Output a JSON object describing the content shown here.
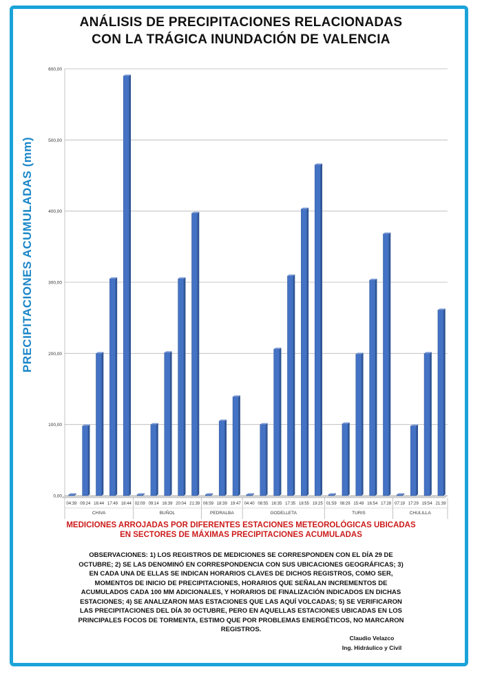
{
  "chart_data": {
    "type": "bar",
    "title": [
      "ANÁLISIS DE PRECIPITACIONES RELACIONADAS",
      "CON LA TRÁGICA INUNDACIÓN DE VALENCIA"
    ],
    "ylabel": "PRECIPITACIONES ACUMULADAS (mm)",
    "ylim": [
      0,
      600
    ],
    "yticks": [
      "0,00",
      "100,00",
      "200,00",
      "300,00",
      "400,00",
      "500,00",
      "600,00"
    ],
    "grid": true,
    "bar_color": "#4472c4",
    "groups": [
      {
        "name": "CHIVA",
        "times": [
          "04:39",
          "09:24",
          "16:44",
          "17:49",
          "18:44"
        ],
        "values": [
          0,
          98,
          200,
          305,
          590
        ]
      },
      {
        "name": "BUÑOL",
        "times": [
          "02:09",
          "09:14",
          "16:39",
          "20:04",
          "21:39"
        ],
        "values": [
          0,
          100,
          201,
          305,
          397
        ]
      },
      {
        "name": "PEDRALBA",
        "times": [
          "06:59",
          "18:39",
          "19:47"
        ],
        "values": [
          0,
          105,
          139
        ]
      },
      {
        "name": "GODELLETA",
        "times": [
          "04:40",
          "08:55",
          "16:35",
          "17:35",
          "18:55",
          "19:25"
        ],
        "values": [
          0,
          100,
          206,
          309,
          403,
          465
        ]
      },
      {
        "name": "TURIS",
        "times": [
          "01:59",
          "08:29",
          "15:49",
          "16:54",
          "17:28"
        ],
        "values": [
          0,
          101,
          199,
          303,
          368
        ]
      },
      {
        "name": "CHULILLA",
        "times": [
          "07:19",
          "17:29",
          "19:54",
          "21:39"
        ],
        "values": [
          0,
          98,
          200,
          261
        ]
      }
    ]
  },
  "caption": {
    "lines": [
      "MEDICIONES ARROJADAS POR DIFERENTES ESTACIONES METEOROLÓGICAS UBICADAS",
      "EN SECTORES DE MÁXIMAS PRECIPITACIONES ACUMULADAS"
    ],
    "color": "#cc1a1a"
  },
  "observations": {
    "lines": [
      "OBSERVACIONES: 1) LOS REGISTROS DE MEDICIONES SE CORRESPONDEN CON EL DÍA 29 DE",
      "OCTUBRE; 2) SE LAS DENOMINÓ EN CORRESPONDENCIA CON SUS UBICACIONES GEOGRÁFICAS; 3)",
      "EN CADA UNA DE ELLAS SE INDICAN HORARIOS CLAVES DE DICHOS REGISTROS, COMO SER,",
      "MOMENTOS DE INICIO DE PRECIPITACIONES, HORARIOS QUE SEÑALAN INCREMENTOS DE",
      "ACUMULADOS CADA 100 MM ADICIONALES, Y HORARIOS DE FINALIZACIÓN INDICADOS EN DICHAS",
      "ESTACIONES; 4) SE ANALIZARON MAS ESTACIONES QUE LAS AQUÍ VOLCADAS; 5) SE VERIFICARON",
      "LAS PRECIPITACIONES DEL DÍA 30 OCTUBRE, PERO EN AQUELLAS ESTACIONES UBICADAS EN LOS",
      "PRINCIPALES FOCOS DE TORMENTA, ESTIMO QUE POR PROBLEMAS ENERGÉTICOS, NO MARCARON",
      "REGISTROS."
    ]
  },
  "signature": {
    "name": "Claudio Velazco",
    "role": "Ing. Hidráulico y Civil"
  },
  "frame_color": "#1aa3d9"
}
